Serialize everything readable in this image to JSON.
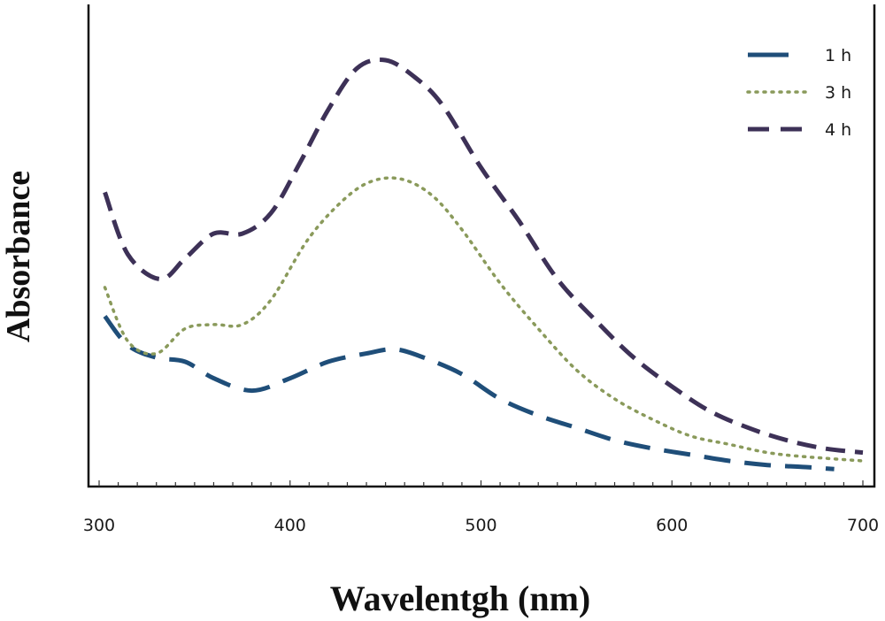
{
  "chart_data": {
    "type": "line",
    "title": "",
    "xlabel": "Wavelentgh (nm)",
    "ylabel": "Absorbance",
    "xlim": [
      300,
      700
    ],
    "ylim": [
      0,
      1
    ],
    "x_ticks": [
      "300",
      "400",
      "500",
      "600",
      "700"
    ],
    "x_tick_values": [
      300,
      400,
      500,
      600,
      700
    ],
    "y_ticks_labeled": false,
    "grid": false,
    "legend_position": "top-right",
    "series": [
      {
        "name": "1 h",
        "color": "#1f4e79",
        "style": "long-dash",
        "x": [
          303,
          315,
          330,
          345,
          360,
          380,
          400,
          420,
          440,
          455,
          470,
          490,
          510,
          530,
          550,
          570,
          590,
          610,
          630,
          650,
          670,
          685
        ],
        "y": [
          0.38,
          0.31,
          0.28,
          0.27,
          0.23,
          0.2,
          0.23,
          0.27,
          0.29,
          0.3,
          0.28,
          0.24,
          0.18,
          0.14,
          0.11,
          0.08,
          0.06,
          0.045,
          0.03,
          0.02,
          0.015,
          0.01
        ]
      },
      {
        "name": "3 h",
        "color": "#8a9a5b",
        "style": "dotted",
        "x": [
          303,
          315,
          330,
          345,
          360,
          375,
          390,
          410,
          430,
          445,
          460,
          475,
          490,
          510,
          530,
          550,
          570,
          590,
          610,
          630,
          650,
          670,
          700
        ],
        "y": [
          0.45,
          0.32,
          0.29,
          0.35,
          0.36,
          0.36,
          0.42,
          0.57,
          0.67,
          0.71,
          0.71,
          0.67,
          0.59,
          0.46,
          0.35,
          0.25,
          0.18,
          0.13,
          0.09,
          0.07,
          0.05,
          0.04,
          0.03
        ]
      },
      {
        "name": "4 h",
        "color": "#3d3157",
        "style": "dashed",
        "x": [
          303,
          315,
          332,
          345,
          360,
          375,
          390,
          405,
          420,
          435,
          450,
          465,
          480,
          500,
          520,
          540,
          560,
          580,
          600,
          620,
          640,
          660,
          680,
          700
        ],
        "y": [
          0.68,
          0.53,
          0.47,
          0.52,
          0.58,
          0.58,
          0.63,
          0.75,
          0.88,
          0.98,
          1.0,
          0.96,
          0.89,
          0.74,
          0.61,
          0.47,
          0.37,
          0.28,
          0.21,
          0.15,
          0.11,
          0.08,
          0.06,
          0.05
        ]
      }
    ]
  }
}
